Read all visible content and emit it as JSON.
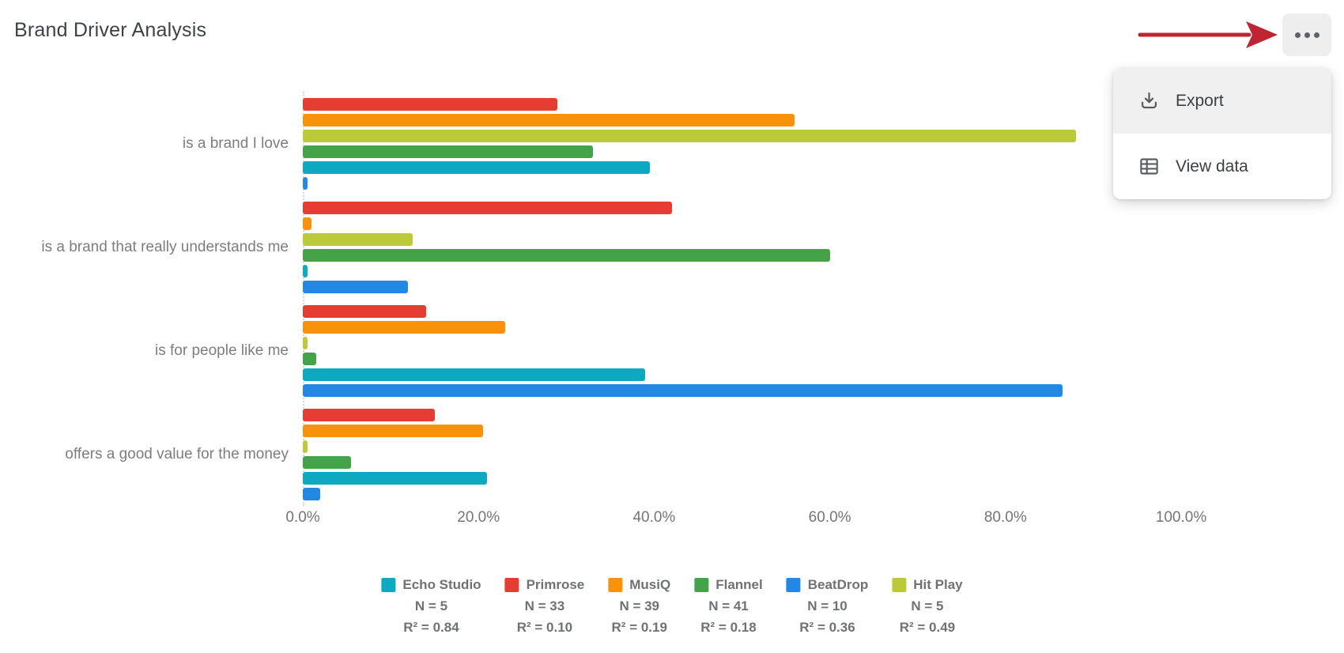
{
  "title": "Brand Driver Analysis",
  "menu": {
    "items": [
      {
        "label": "Export",
        "icon": "download-icon",
        "highlighted": true
      },
      {
        "label": "View data",
        "icon": "table-icon",
        "highlighted": false
      }
    ]
  },
  "annotation": {
    "arrow_color": "#bf2432",
    "arrow_direction": "right",
    "points_to": "more-options-button"
  },
  "chart_data": {
    "type": "bar",
    "orientation": "horizontal",
    "title": "Brand Driver Analysis",
    "categories": [
      "is a brand I love",
      "is a brand that really understands me",
      "is for people like me",
      "offers a good value for the money"
    ],
    "series": [
      {
        "name": "Primrose",
        "color": "#e53d32",
        "n": 33,
        "r2": 0.1,
        "values": [
          29,
          42,
          14,
          15
        ]
      },
      {
        "name": "MusiQ",
        "color": "#f8920b",
        "n": 39,
        "r2": 0.19,
        "values": [
          56,
          1,
          23,
          20.5
        ]
      },
      {
        "name": "Hit Play",
        "color": "#bcc939",
        "n": 5,
        "r2": 0.49,
        "values": [
          88,
          12.5,
          0.5,
          0.5
        ]
      },
      {
        "name": "Flannel",
        "color": "#44a248",
        "n": 41,
        "r2": 0.18,
        "values": [
          33,
          60,
          1.5,
          5.5
        ]
      },
      {
        "name": "Echo Studio",
        "color": "#0ca9c0",
        "n": 5,
        "r2": 0.84,
        "values": [
          39.5,
          0.5,
          39,
          21
        ]
      },
      {
        "name": "BeatDrop",
        "color": "#2288e3",
        "n": 10,
        "r2": 0.36,
        "values": [
          0.5,
          12,
          86.5,
          2
        ]
      }
    ],
    "x_ticks": [
      "0.0%",
      "20.0%",
      "40.0%",
      "60.0%",
      "80.0%",
      "100.0%"
    ],
    "xlim": [
      0,
      100
    ],
    "grid": false,
    "legend_position": "bottom"
  },
  "legend": {
    "items": [
      {
        "name": "Echo Studio",
        "color": "#0ca9c0",
        "n_label": "N = 5",
        "r2_label": "R² = 0.84"
      },
      {
        "name": "Primrose",
        "color": "#e53d32",
        "n_label": "N = 33",
        "r2_label": "R² = 0.10"
      },
      {
        "name": "MusiQ",
        "color": "#f8920b",
        "n_label": "N = 39",
        "r2_label": "R² = 0.19"
      },
      {
        "name": "Flannel",
        "color": "#44a248",
        "n_label": "N = 41",
        "r2_label": "R² = 0.18"
      },
      {
        "name": "BeatDrop",
        "color": "#2288e3",
        "n_label": "N = 10",
        "r2_label": "R² = 0.36"
      },
      {
        "name": "Hit Play",
        "color": "#bcc939",
        "n_label": "N = 5",
        "r2_label": "R² = 0.49"
      }
    ]
  }
}
